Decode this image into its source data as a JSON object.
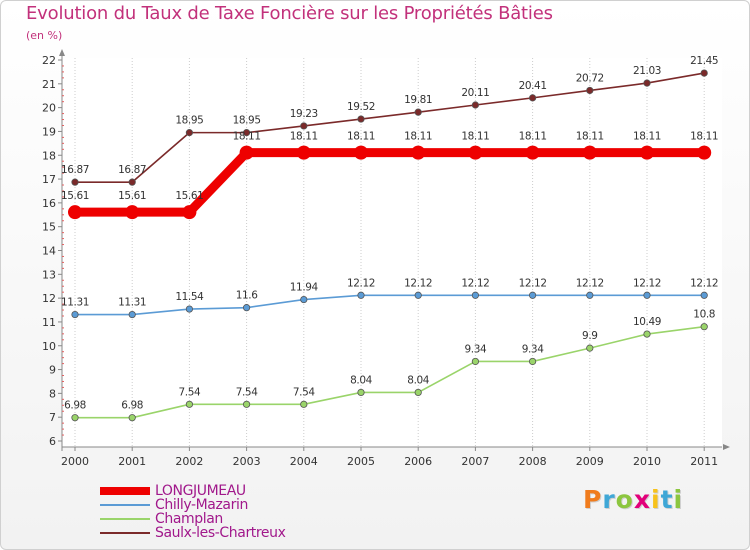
{
  "header": {
    "title": "Evolution du Taux de Taxe Foncière sur les Propriétés Bâties",
    "unit": "(en %)"
  },
  "brand": {
    "name": "Proxiti",
    "letter_colors": [
      "#f07c1d",
      "#3fa7d6",
      "#8cc63f",
      "#e2007a",
      "#f7c21a",
      "#3fa7d6",
      "#8cc63f"
    ]
  },
  "colors": {
    "title": "#c2317b",
    "legend_text": "#a1188b",
    "axis": "#888888",
    "grid": "#cccccc"
  },
  "chart_data": {
    "type": "line",
    "title": "Evolution du Taux de Taxe Foncière sur les Propriétés Bâties",
    "ylabel": "(en %)",
    "xlabel": "",
    "x": [
      "2000",
      "2001",
      "2002",
      "2003",
      "2004",
      "2005",
      "2006",
      "2007",
      "2008",
      "2009",
      "2010",
      "2011"
    ],
    "ylim": [
      6,
      22
    ],
    "yticks": [
      6,
      7,
      8,
      9,
      10,
      11,
      12,
      13,
      14,
      15,
      16,
      17,
      18,
      19,
      20,
      21,
      22
    ],
    "grid": "vertical",
    "legend_position": "bottom-left",
    "series": [
      {
        "name": "LONGJUMEAU",
        "color": "#ee0000",
        "emphasis": true,
        "values": [
          15.61,
          15.61,
          15.61,
          18.11,
          18.11,
          18.11,
          18.11,
          18.11,
          18.11,
          18.11,
          18.11,
          18.11
        ],
        "labels": [
          "15.61",
          "15.61",
          "15.61",
          "18.11",
          "18.11",
          "18.11",
          "18.11",
          "18.11",
          "18.11",
          "18.11",
          "18.11",
          "18.11"
        ]
      },
      {
        "name": "Chilly-Mazarin",
        "color": "#5b9bd5",
        "emphasis": false,
        "values": [
          11.31,
          11.31,
          11.54,
          11.6,
          11.94,
          12.12,
          12.12,
          12.12,
          12.12,
          12.12,
          12.12,
          12.12
        ],
        "labels": [
          "11.31",
          "11.31",
          "11.54",
          "11.6",
          "11.94",
          "12.12",
          "12.12",
          "12.12",
          "12.12",
          "12.12",
          "12.12",
          "12.12"
        ]
      },
      {
        "name": "Champlan",
        "color": "#9ad46a",
        "emphasis": false,
        "values": [
          6.98,
          6.98,
          7.54,
          7.54,
          7.54,
          8.04,
          8.04,
          9.34,
          9.34,
          9.9,
          10.49,
          10.8
        ],
        "labels": [
          "6.98",
          "6.98",
          "7.54",
          "7.54",
          "7.54",
          "8.04",
          "8.04",
          "9.34",
          "9.34",
          "9.9",
          "10.49",
          "10.8"
        ]
      },
      {
        "name": "Saulx-les-Chartreux",
        "color": "#7b2a2a",
        "emphasis": false,
        "values": [
          16.87,
          16.87,
          18.95,
          18.95,
          19.23,
          19.52,
          19.81,
          20.11,
          20.41,
          20.72,
          21.03,
          21.45
        ],
        "labels": [
          "16.87",
          "16.87",
          "18.95",
          "18.95",
          "19.23",
          "19.52",
          "19.81",
          "20.11",
          "20.41",
          "20.72",
          "21.03",
          "21.45"
        ]
      }
    ]
  }
}
